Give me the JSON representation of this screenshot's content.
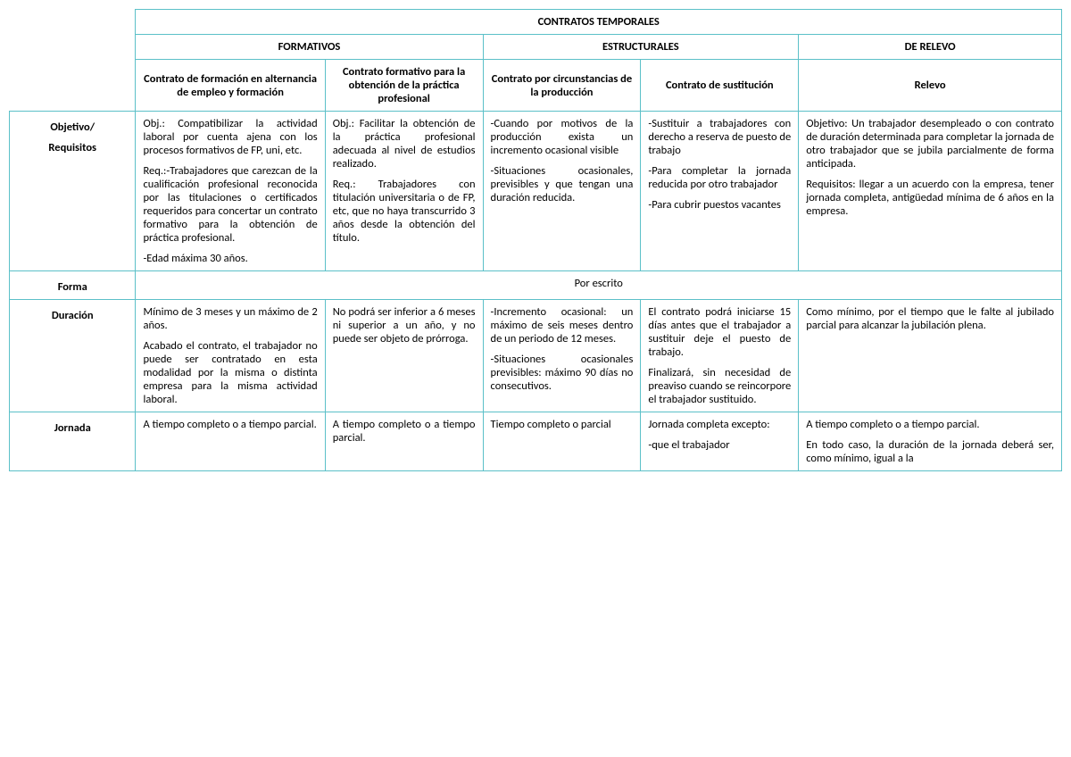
{
  "header": {
    "title": "CONTRATOS TEMPORALES",
    "group1": "FORMATIVOS",
    "group2": "ESTRUCTURALES",
    "group3": "DE RELEVO",
    "col1": "Contrato de formación en alternancia de empleo y formación",
    "col2": "Contrato formativo para la obtención de la práctica profesional",
    "col3": "Contrato por circunstancias de la producción",
    "col4": "Contrato de sustitución",
    "col5": "Relevo"
  },
  "rows": {
    "objetivo": {
      "label": "Objetivo/",
      "label2": "Requisitos",
      "c1a": "Obj.: Compatibilizar la actividad laboral por cuenta ajena con los procesos formativos de FP, uni, etc.",
      "c1b": "Req.:-Trabajadores que carezcan de la cualificación profesional reconocida por las titulaciones o certificados requeridos para concertar un contrato formativo para la obtención de práctica profesional.",
      "c1c": "-Edad máxima 30 años.",
      "c2a": "Obj.: Facilitar la obtención de la práctica profesional adecuada al nivel de estudios realizado.",
      "c2b": "Req.: Trabajadores con titulación universitaria o de FP, etc, que no haya transcurrido 3 años desde la obtención del título.",
      "c3a": "-Cuando por motivos de la producción exista un incremento ocasional visible",
      "c3b": "-Situaciones ocasionales, previsibles y que tengan una duración reducida.",
      "c4a": "-Sustituir a trabajadores con derecho a reserva de puesto de trabajo",
      "c4b": "-Para completar la jornada reducida por otro trabajador",
      "c4c": "-Para cubrir puestos vacantes",
      "c5a": "Objetivo: Un trabajador desempleado o con contrato de duración determinada para completar la jornada de otro trabajador que se jubila parcialmente de forma anticipada.",
      "c5b": "Requisitos: llegar a un acuerdo con la empresa, tener jornada completa, antigüedad mínima de 6 años en la empresa."
    },
    "forma": {
      "label": "Forma",
      "text": "Por escrito"
    },
    "duracion": {
      "label": "Duración",
      "c1a": "Mínimo de 3 meses y un máximo de 2 años.",
      "c1b": "Acabado el contrato, el trabajador no puede ser contratado en esta modalidad por la misma o distinta empresa para la misma actividad laboral.",
      "c2": "No podrá ser inferior a 6 meses ni superior a un año, y no puede ser objeto de prórroga.",
      "c3a": "-Incremento ocasional: un máximo de seis meses dentro de un periodo de 12 meses.",
      "c3b": "-Situaciones ocasionales previsibles: máximo 90 días no consecutivos.",
      "c4a": "El contrato podrá iniciarse 15 días antes que el trabajador a sustituir deje el puesto de trabajo.",
      "c4b": "Finalizará, sin necesidad de preaviso cuando se reincorpore el trabajador sustituido.",
      "c5": "Como mínimo, por el tiempo que le falte al jubilado parcial para alcanzar la jubilación plena."
    },
    "jornada": {
      "label": "Jornada",
      "c1": "A tiempo completo o a tiempo parcial.",
      "c2": "A tiempo completo o a tiempo parcial.",
      "c3": "Tiempo completo o parcial",
      "c4a": "Jornada completa excepto:",
      "c4b": "-que el trabajador",
      "c5a": "A tiempo completo o a tiempo parcial.",
      "c5b": "En todo caso, la duración de la jornada deberá ser, como mínimo, igual a la"
    }
  }
}
